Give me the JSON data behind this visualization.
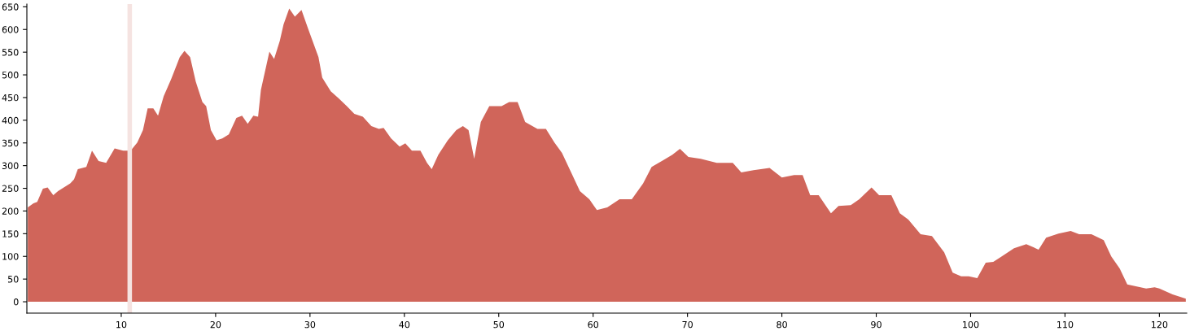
{
  "chart_data": {
    "type": "area",
    "x": [
      0.1,
      0.7,
      1.1,
      1.7,
      2.2,
      2.8,
      3.3,
      4.6,
      5.0,
      5.4,
      6.3,
      6.9,
      7.6,
      8.4,
      9.3,
      10.2,
      11.0,
      11.7,
      12.3,
      12.8,
      13.4,
      13.9,
      14.5,
      15.3,
      16.2,
      16.7,
      17.3,
      17.9,
      18.6,
      19.0,
      19.5,
      20.1,
      20.7,
      21.4,
      22.2,
      22.8,
      23.4,
      24.0,
      24.5,
      24.8,
      25.7,
      26.2,
      26.8,
      27.2,
      27.8,
      28.4,
      29.1,
      29.8,
      30.9,
      31.3,
      32.2,
      33.0,
      33.9,
      34.7,
      35.6,
      36.5,
      37.3,
      37.8,
      38.6,
      39.5,
      40.1,
      40.8,
      41.7,
      42.4,
      42.9,
      43.6,
      44.6,
      45.5,
      46.2,
      46.8,
      47.4,
      48.1,
      49.0,
      50.3,
      51.1,
      52.0,
      52.8,
      54.1,
      55.0,
      55.9,
      56.7,
      57.6,
      58.6,
      59.6,
      60.4,
      61.5,
      62.8,
      64.1,
      65.3,
      66.2,
      67.5,
      68.4,
      69.2,
      70.1,
      71.4,
      73.1,
      74.8,
      75.7,
      77.0,
      78.7,
      80.0,
      81.3,
      82.2,
      83.0,
      83.9,
      85.2,
      86.0,
      87.3,
      88.2,
      89.5,
      90.3,
      91.6,
      92.5,
      93.4,
      94.7,
      95.9,
      97.2,
      98.1,
      99.0,
      99.8,
      100.7,
      101.6,
      102.4,
      103.3,
      104.6,
      105.9,
      107.2,
      108.0,
      109.3,
      110.6,
      111.5,
      112.8,
      114.1,
      114.9,
      115.8,
      116.6,
      117.5,
      118.6,
      119.5,
      120.0,
      121.4,
      122.8
    ],
    "series": [
      {
        "color": "#d0655a",
        "values": [
          208,
          217,
          220,
          249,
          252,
          235,
          244,
          261,
          270,
          292,
          297,
          333,
          310,
          306,
          338,
          333,
          333,
          351,
          378,
          426,
          426,
          410,
          453,
          491,
          539,
          553,
          539,
          485,
          440,
          431,
          378,
          356,
          360,
          369,
          405,
          410,
          392,
          410,
          408,
          467,
          551,
          535,
          575,
          611,
          646,
          628,
          643,
          602,
          539,
          494,
          464,
          449,
          431,
          414,
          408,
          387,
          381,
          383,
          360,
          342,
          349,
          333,
          333,
          306,
          292,
          324,
          356,
          378,
          387,
          378,
          315,
          396,
          431,
          431,
          440,
          440,
          396,
          381,
          381,
          351,
          328,
          288,
          244,
          226,
          202,
          208,
          226,
          226,
          261,
          297,
          313,
          324,
          337,
          319,
          315,
          306,
          306,
          285,
          290,
          295,
          274,
          279,
          279,
          235,
          235,
          195,
          211,
          213,
          226,
          252,
          235,
          235,
          195,
          181,
          149,
          145,
          109,
          64,
          56,
          56,
          52,
          86,
          88,
          100,
          118,
          127,
          115,
          141,
          150,
          156,
          149,
          149,
          136,
          100,
          73,
          38,
          34,
          29,
          32,
          29,
          16,
          7
        ]
      }
    ],
    "xlim": [
      0,
      122.9
    ],
    "ylim": [
      -25,
      656
    ],
    "xticks": [
      10,
      20,
      30,
      40,
      50,
      60,
      70,
      80,
      90,
      100,
      110,
      120
    ],
    "yticks": [
      0,
      50,
      100,
      150,
      200,
      250,
      300,
      350,
      400,
      450,
      500,
      550,
      600,
      650
    ],
    "ref_lines": [
      {
        "axis": "x",
        "value": 10.9,
        "color": "#f5e3e1"
      }
    ],
    "grid": false
  }
}
